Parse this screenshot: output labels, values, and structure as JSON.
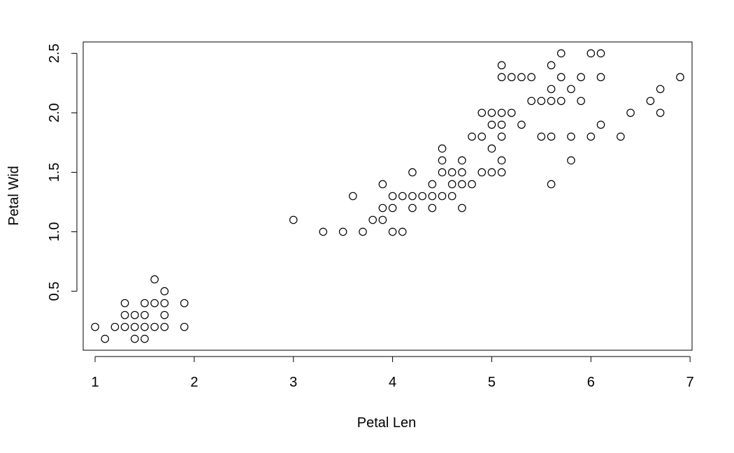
{
  "chart_data": {
    "type": "scatter",
    "title": "",
    "xlabel": "Petal Len",
    "ylabel": "Petal Wid",
    "xlim": [
      0.88,
      7.02
    ],
    "ylim": [
      0.004,
      2.596
    ],
    "x_ticks": [
      1,
      2,
      3,
      4,
      5,
      6,
      7
    ],
    "x_tick_labels": [
      "1",
      "2",
      "3",
      "4",
      "5",
      "6",
      "7"
    ],
    "y_ticks": [
      0.5,
      1.0,
      1.5,
      2.0,
      2.5
    ],
    "y_tick_labels": [
      "0.5",
      "1.0",
      "1.5",
      "2.0",
      "2.5"
    ],
    "grid": false,
    "legend": "none",
    "marker": "open-circle",
    "series": [
      {
        "points": [
          [
            1.0,
            0.2
          ],
          [
            1.1,
            0.1
          ],
          [
            1.2,
            0.2
          ],
          [
            1.3,
            0.2
          ],
          [
            1.3,
            0.3
          ],
          [
            1.3,
            0.4
          ],
          [
            1.4,
            0.1
          ],
          [
            1.4,
            0.2
          ],
          [
            1.4,
            0.3
          ],
          [
            1.5,
            0.1
          ],
          [
            1.5,
            0.2
          ],
          [
            1.5,
            0.3
          ],
          [
            1.5,
            0.4
          ],
          [
            1.6,
            0.2
          ],
          [
            1.6,
            0.4
          ],
          [
            1.6,
            0.6
          ],
          [
            1.7,
            0.2
          ],
          [
            1.7,
            0.3
          ],
          [
            1.7,
            0.4
          ],
          [
            1.7,
            0.5
          ],
          [
            1.9,
            0.2
          ],
          [
            1.9,
            0.4
          ],
          [
            3.0,
            1.1
          ],
          [
            3.3,
            1.0
          ],
          [
            3.5,
            1.0
          ],
          [
            3.6,
            1.3
          ],
          [
            3.7,
            1.0
          ],
          [
            3.8,
            1.1
          ],
          [
            3.9,
            1.1
          ],
          [
            3.9,
            1.2
          ],
          [
            3.9,
            1.4
          ],
          [
            4.0,
            1.0
          ],
          [
            4.0,
            1.2
          ],
          [
            4.0,
            1.3
          ],
          [
            4.1,
            1.0
          ],
          [
            4.1,
            1.3
          ],
          [
            4.2,
            1.2
          ],
          [
            4.2,
            1.3
          ],
          [
            4.2,
            1.5
          ],
          [
            4.3,
            1.3
          ],
          [
            4.4,
            1.2
          ],
          [
            4.4,
            1.3
          ],
          [
            4.4,
            1.4
          ],
          [
            4.5,
            1.3
          ],
          [
            4.5,
            1.5
          ],
          [
            4.5,
            1.6
          ],
          [
            4.5,
            1.7
          ],
          [
            4.6,
            1.3
          ],
          [
            4.6,
            1.4
          ],
          [
            4.6,
            1.5
          ],
          [
            4.7,
            1.2
          ],
          [
            4.7,
            1.4
          ],
          [
            4.7,
            1.5
          ],
          [
            4.7,
            1.6
          ],
          [
            4.8,
            1.4
          ],
          [
            4.8,
            1.8
          ],
          [
            4.9,
            1.5
          ],
          [
            4.9,
            1.8
          ],
          [
            4.9,
            2.0
          ],
          [
            5.0,
            1.5
          ],
          [
            5.0,
            1.7
          ],
          [
            5.0,
            1.9
          ],
          [
            5.0,
            2.0
          ],
          [
            5.1,
            1.5
          ],
          [
            5.1,
            1.6
          ],
          [
            5.1,
            1.8
          ],
          [
            5.1,
            1.9
          ],
          [
            5.1,
            2.0
          ],
          [
            5.1,
            2.3
          ],
          [
            5.1,
            2.4
          ],
          [
            5.2,
            2.0
          ],
          [
            5.2,
            2.3
          ],
          [
            5.3,
            1.9
          ],
          [
            5.3,
            2.3
          ],
          [
            5.4,
            2.1
          ],
          [
            5.4,
            2.3
          ],
          [
            5.5,
            1.8
          ],
          [
            5.5,
            2.1
          ],
          [
            5.6,
            1.4
          ],
          [
            5.6,
            1.8
          ],
          [
            5.6,
            2.1
          ],
          [
            5.6,
            2.2
          ],
          [
            5.6,
            2.4
          ],
          [
            5.7,
            2.1
          ],
          [
            5.7,
            2.3
          ],
          [
            5.7,
            2.5
          ],
          [
            5.8,
            1.6
          ],
          [
            5.8,
            1.8
          ],
          [
            5.8,
            2.2
          ],
          [
            5.9,
            2.1
          ],
          [
            5.9,
            2.3
          ],
          [
            6.0,
            1.8
          ],
          [
            6.0,
            2.5
          ],
          [
            6.1,
            1.9
          ],
          [
            6.1,
            2.3
          ],
          [
            6.1,
            2.5
          ],
          [
            6.3,
            1.8
          ],
          [
            6.4,
            2.0
          ],
          [
            6.6,
            2.1
          ],
          [
            6.7,
            2.0
          ],
          [
            6.7,
            2.2
          ],
          [
            6.9,
            2.3
          ]
        ]
      }
    ]
  }
}
